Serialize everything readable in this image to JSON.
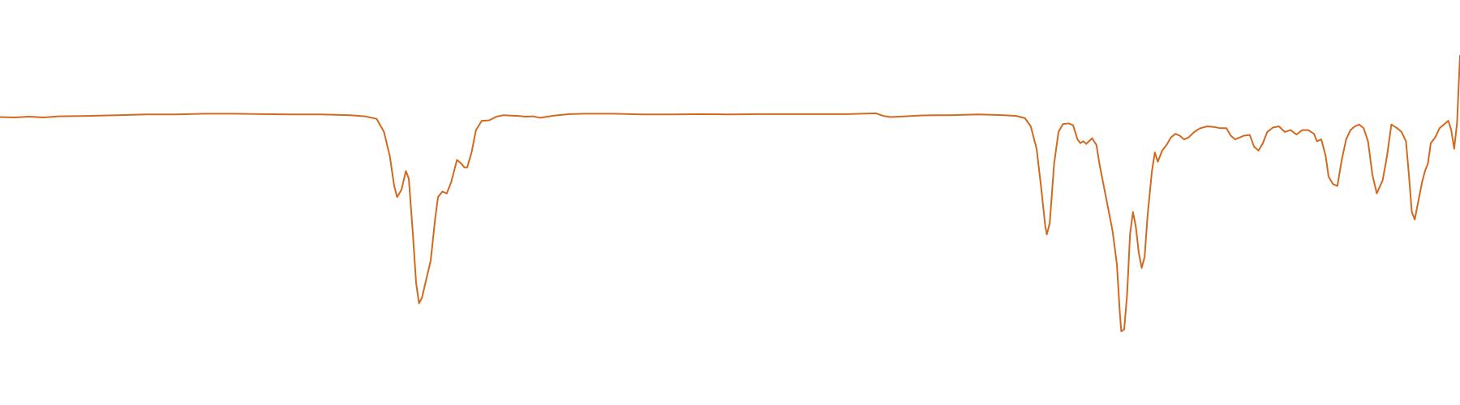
{
  "chart_data": {
    "type": "line",
    "title": "",
    "xlabel": "",
    "ylabel": "",
    "x_range": [
      0,
      100
    ],
    "y_range": [
      0,
      100
    ],
    "grid": false,
    "legend": "none",
    "series": [
      {
        "color": "#d2691e",
        "points": [
          [
            0.0,
            72.5
          ],
          [
            1.0,
            72.4
          ],
          [
            2.0,
            72.6
          ],
          [
            3.0,
            72.4
          ],
          [
            4.0,
            72.7
          ],
          [
            6.0,
            72.8
          ],
          [
            8.0,
            73.0
          ],
          [
            10.0,
            73.2
          ],
          [
            12.0,
            73.2
          ],
          [
            14.0,
            73.4
          ],
          [
            16.0,
            73.4
          ],
          [
            18.0,
            73.3
          ],
          [
            20.0,
            73.2
          ],
          [
            22.0,
            73.2
          ],
          [
            23.0,
            73.1
          ],
          [
            24.0,
            73.0
          ],
          [
            25.0,
            72.7
          ],
          [
            25.8,
            72.0
          ],
          [
            26.3,
            68.5
          ],
          [
            26.7,
            62.0
          ],
          [
            27.0,
            54.0
          ],
          [
            27.2,
            51.0
          ],
          [
            27.5,
            53.0
          ],
          [
            27.8,
            58.0
          ],
          [
            28.0,
            56.0
          ],
          [
            28.3,
            40.0
          ],
          [
            28.5,
            28.0
          ],
          [
            28.7,
            22.5
          ],
          [
            28.9,
            24.0
          ],
          [
            29.2,
            29.0
          ],
          [
            29.5,
            34.0
          ],
          [
            29.8,
            45.0
          ],
          [
            30.0,
            51.0
          ],
          [
            30.3,
            52.5
          ],
          [
            30.6,
            52.0
          ],
          [
            30.9,
            55.0
          ],
          [
            31.1,
            58.0
          ],
          [
            31.3,
            61.0
          ],
          [
            31.6,
            60.0
          ],
          [
            31.8,
            59.0
          ],
          [
            32.0,
            59.0
          ],
          [
            32.3,
            63.0
          ],
          [
            32.6,
            69.0
          ],
          [
            33.0,
            71.5
          ],
          [
            33.5,
            71.6
          ],
          [
            34.0,
            72.6
          ],
          [
            34.5,
            73.0
          ],
          [
            35.5,
            72.8
          ],
          [
            36.0,
            72.6
          ],
          [
            36.5,
            72.7
          ],
          [
            37.0,
            72.3
          ],
          [
            37.5,
            72.6
          ],
          [
            38.0,
            72.9
          ],
          [
            39.0,
            73.3
          ],
          [
            40.0,
            73.4
          ],
          [
            42.0,
            73.4
          ],
          [
            44.0,
            73.2
          ],
          [
            46.0,
            73.2
          ],
          [
            48.0,
            73.3
          ],
          [
            50.0,
            73.2
          ],
          [
            52.0,
            73.3
          ],
          [
            54.0,
            73.3
          ],
          [
            56.0,
            73.3
          ],
          [
            58.0,
            73.3
          ],
          [
            60.0,
            73.5
          ],
          [
            60.5,
            72.8
          ],
          [
            61.0,
            72.5
          ],
          [
            62.0,
            72.7
          ],
          [
            63.0,
            72.9
          ],
          [
            64.0,
            73.0
          ],
          [
            65.0,
            73.0
          ],
          [
            66.0,
            73.1
          ],
          [
            67.0,
            73.2
          ],
          [
            68.0,
            73.1
          ],
          [
            68.8,
            73.0
          ],
          [
            69.6,
            72.8
          ],
          [
            70.2,
            72.2
          ],
          [
            70.6,
            70.0
          ],
          [
            71.0,
            64.0
          ],
          [
            71.3,
            54.0
          ],
          [
            71.6,
            43.0
          ],
          [
            71.7,
            41.0
          ],
          [
            71.9,
            44.0
          ],
          [
            72.2,
            60.0
          ],
          [
            72.5,
            68.5
          ],
          [
            72.8,
            70.6
          ],
          [
            73.2,
            70.8
          ],
          [
            73.5,
            70.3
          ],
          [
            73.8,
            66.5
          ],
          [
            74.0,
            65.5
          ],
          [
            74.2,
            66.0
          ],
          [
            74.4,
            65.3
          ],
          [
            74.8,
            66.8
          ],
          [
            75.1,
            65.0
          ],
          [
            75.3,
            60.0
          ],
          [
            75.6,
            54.0
          ],
          [
            75.9,
            48.0
          ],
          [
            76.2,
            42.0
          ],
          [
            76.5,
            33.0
          ],
          [
            76.7,
            20.0
          ],
          [
            76.8,
            15.0
          ],
          [
            77.0,
            15.5
          ],
          [
            77.2,
            25.0
          ],
          [
            77.4,
            41.0
          ],
          [
            77.6,
            47.0
          ],
          [
            77.8,
            43.0
          ],
          [
            78.0,
            36.0
          ],
          [
            78.2,
            32.0
          ],
          [
            78.4,
            35.0
          ],
          [
            78.6,
            46.0
          ],
          [
            78.9,
            58.0
          ],
          [
            79.1,
            63.0
          ],
          [
            79.3,
            60.5
          ],
          [
            79.6,
            63.5
          ],
          [
            79.9,
            65.0
          ],
          [
            80.2,
            67.0
          ],
          [
            80.5,
            68.0
          ],
          [
            80.8,
            67.5
          ],
          [
            81.1,
            66.5
          ],
          [
            81.4,
            67.0
          ],
          [
            81.8,
            68.5
          ],
          [
            82.2,
            69.5
          ],
          [
            82.7,
            70.0
          ],
          [
            83.2,
            69.8
          ],
          [
            83.6,
            69.5
          ],
          [
            84.0,
            69.5
          ],
          [
            84.3,
            67.5
          ],
          [
            84.6,
            66.5
          ],
          [
            84.9,
            67.0
          ],
          [
            85.2,
            67.5
          ],
          [
            85.6,
            67.7
          ],
          [
            85.9,
            64.5
          ],
          [
            86.2,
            63.5
          ],
          [
            86.5,
            65.5
          ],
          [
            86.8,
            68.5
          ],
          [
            87.2,
            69.7
          ],
          [
            87.6,
            70.0
          ],
          [
            88.0,
            68.5
          ],
          [
            88.4,
            69.0
          ],
          [
            88.8,
            67.8
          ],
          [
            89.2,
            69.0
          ],
          [
            89.6,
            69.0
          ],
          [
            90.0,
            68.0
          ],
          [
            90.2,
            66.0
          ],
          [
            90.5,
            66.5
          ],
          [
            90.8,
            62.0
          ],
          [
            91.0,
            56.5
          ],
          [
            91.3,
            54.5
          ],
          [
            91.6,
            54.0
          ],
          [
            91.9,
            61.0
          ],
          [
            92.2,
            66.5
          ],
          [
            92.5,
            69.0
          ],
          [
            92.8,
            70.0
          ],
          [
            93.1,
            70.5
          ],
          [
            93.4,
            69.5
          ],
          [
            93.7,
            66.0
          ],
          [
            94.0,
            57.0
          ],
          [
            94.3,
            52.0
          ],
          [
            94.7,
            55.5
          ],
          [
            95.0,
            62.0
          ],
          [
            95.3,
            70.5
          ],
          [
            95.7,
            69.5
          ],
          [
            96.0,
            68.5
          ],
          [
            96.3,
            66.0
          ],
          [
            96.5,
            57.0
          ],
          [
            96.7,
            47.0
          ],
          [
            96.9,
            45.0
          ],
          [
            97.1,
            49.0
          ],
          [
            97.4,
            55.0
          ],
          [
            97.6,
            58.0
          ],
          [
            97.8,
            60.0
          ],
          [
            98.0,
            65.5
          ],
          [
            98.3,
            67.0
          ],
          [
            98.6,
            69.5
          ],
          [
            98.9,
            70.5
          ],
          [
            99.2,
            71.5
          ],
          [
            99.4,
            69.0
          ],
          [
            99.6,
            64.0
          ],
          [
            99.8,
            71.0
          ],
          [
            100.0,
            89.0
          ]
        ]
      }
    ]
  }
}
